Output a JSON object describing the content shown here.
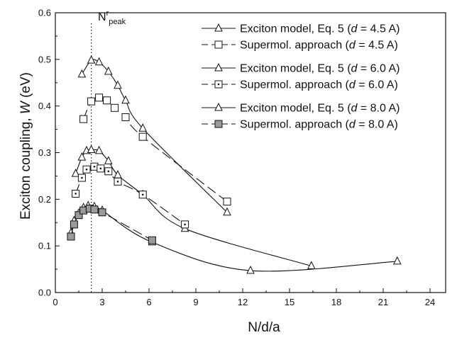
{
  "chart_data": {
    "type": "line",
    "xlabel": "N/d/a",
    "ylabel_main": "Exciton coupling, ",
    "ylabel_var": "W",
    "ylabel_unit": " (eV)",
    "xlim": [
      0,
      25
    ],
    "ylim": [
      0,
      0.6
    ],
    "xticks": [
      "0",
      "3",
      "6",
      "9",
      "12",
      "15",
      "18",
      "21",
      "24"
    ],
    "yticks": [
      "0.0",
      "0.1",
      "0.2",
      "0.3",
      "0.4",
      "0.5",
      "0.6"
    ],
    "annotation": {
      "base": "N",
      "sup": "r",
      "sub": "peak",
      "x": 2.3
    },
    "legend_position": "top-right",
    "series": [
      {
        "name": "Exciton model, Eq. 5 (d = 4.5 A)",
        "marker": "triangle",
        "dashed": false,
        "x": [
          1.7,
          2.3,
          2.8,
          3.4,
          4.0,
          4.5,
          5.6,
          11.0
        ],
        "y": [
          0.468,
          0.498,
          0.494,
          0.474,
          0.444,
          0.412,
          0.352,
          0.172
        ]
      },
      {
        "name": "Supermol. approach (d = 4.5 A)",
        "marker": "square",
        "dashed": true,
        "x": [
          1.8,
          2.3,
          2.8,
          3.3,
          3.8,
          4.5,
          5.6,
          11.0
        ],
        "y": [
          0.372,
          0.41,
          0.418,
          0.412,
          0.396,
          0.376,
          0.334,
          0.195
        ]
      },
      {
        "name": "Exciton model, Eq. 5 (d = 6.0 A)",
        "marker": "triangle",
        "dashed": false,
        "x": [
          1.3,
          1.7,
          2.0,
          2.3,
          2.8,
          3.4,
          4.0,
          5.6,
          8.3,
          16.4
        ],
        "y": [
          0.255,
          0.29,
          0.304,
          0.306,
          0.304,
          0.282,
          0.252,
          0.21,
          0.137,
          0.057
        ]
      },
      {
        "name": "Supermol. approach (d = 6.0 A)",
        "marker": "dotsquare",
        "dashed": true,
        "x": [
          1.3,
          1.7,
          2.0,
          2.5,
          2.9,
          3.4,
          4.0,
          5.6,
          8.3
        ],
        "y": [
          0.212,
          0.246,
          0.264,
          0.27,
          0.266,
          0.26,
          0.238,
          0.21,
          0.146
        ]
      },
      {
        "name": "Exciton model, Eq. 5 (d = 8.0 A)",
        "marker": "triangle",
        "dashed": false,
        "x": [
          1.0,
          1.2,
          1.5,
          1.8,
          2.1,
          2.5,
          3.0,
          6.2,
          12.5,
          21.9
        ],
        "y": [
          0.128,
          0.154,
          0.17,
          0.182,
          0.186,
          0.184,
          0.176,
          0.108,
          0.047,
          0.067
        ]
      },
      {
        "name": "Supermol. approach (d = 8.0 A)",
        "marker": "graysquare",
        "dashed": true,
        "x": [
          1.0,
          1.2,
          1.5,
          1.8,
          2.2,
          2.5,
          3.0,
          6.2
        ],
        "y": [
          0.12,
          0.146,
          0.166,
          0.176,
          0.18,
          0.178,
          0.172,
          0.112
        ]
      }
    ]
  }
}
